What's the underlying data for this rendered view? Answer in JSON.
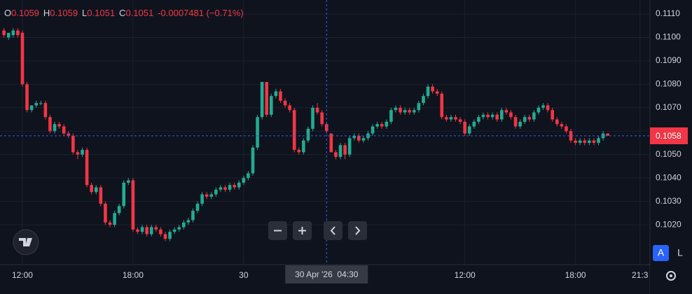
{
  "chart_data": {
    "type": "candlestick",
    "header": [
      {
        "label": "O",
        "value": "0.1059"
      },
      {
        "label": "H",
        "value": "0.1059"
      },
      {
        "label": "L",
        "value": "0.1051"
      },
      {
        "label": "C",
        "value": "0.1051"
      }
    ],
    "change": "-0.0007481 (−0.71%)",
    "up_color": "#22ab94",
    "down_color": "#f23645",
    "candles": [
      [
        0.1103,
        0.1104,
        0.11,
        0.1101
      ],
      [
        0.11,
        0.1102,
        0.1099,
        0.1102
      ],
      [
        0.1101,
        0.1104,
        0.11,
        0.1103
      ],
      [
        0.1103,
        0.1104,
        0.11,
        0.1101
      ],
      [
        0.1102,
        0.1103,
        0.1079,
        0.108
      ],
      [
        0.108,
        0.1081,
        0.1068,
        0.1069
      ],
      [
        0.1069,
        0.1071,
        0.1068,
        0.1071
      ],
      [
        0.1071,
        0.1073,
        0.107,
        0.1072
      ],
      [
        0.1072,
        0.1073,
        0.1071,
        0.1072
      ],
      [
        0.1072,
        0.1073,
        0.1065,
        0.1066
      ],
      [
        0.1066,
        0.1067,
        0.1059,
        0.106
      ],
      [
        0.106,
        0.1064,
        0.1059,
        0.1063
      ],
      [
        0.1063,
        0.1064,
        0.1061,
        0.1062
      ],
      [
        0.1062,
        0.1063,
        0.1058,
        0.1059
      ],
      [
        0.1059,
        0.106,
        0.1057,
        0.1058
      ],
      [
        0.1058,
        0.1059,
        0.105,
        0.1051
      ],
      [
        0.1051,
        0.1052,
        0.1048,
        0.105
      ],
      [
        0.105,
        0.1053,
        0.1049,
        0.1052
      ],
      [
        0.1052,
        0.1053,
        0.1036,
        0.1037
      ],
      [
        0.1037,
        0.1038,
        0.1033,
        0.1034
      ],
      [
        0.1034,
        0.1037,
        0.1033,
        0.1036
      ],
      [
        0.1036,
        0.1037,
        0.1028,
        0.1029
      ],
      [
        0.1029,
        0.103,
        0.102,
        0.1021
      ],
      [
        0.1021,
        0.1022,
        0.1019,
        0.102
      ],
      [
        0.102,
        0.1026,
        0.1019,
        0.1025
      ],
      [
        0.1025,
        0.1029,
        0.1024,
        0.1028
      ],
      [
        0.1028,
        0.1039,
        0.1027,
        0.1038
      ],
      [
        0.1038,
        0.104,
        0.1037,
        0.1039
      ],
      [
        0.1039,
        0.104,
        0.1017,
        0.1018
      ],
      [
        0.1018,
        0.1019,
        0.1016,
        0.1017
      ],
      [
        0.1017,
        0.102,
        0.1016,
        0.1019
      ],
      [
        0.1019,
        0.102,
        0.1015,
        0.1016
      ],
      [
        0.1016,
        0.102,
        0.1015,
        0.1019
      ],
      [
        0.1019,
        0.102,
        0.1017,
        0.1018
      ],
      [
        0.1018,
        0.1019,
        0.1015,
        0.1016
      ],
      [
        0.1016,
        0.1017,
        0.1013,
        0.1014
      ],
      [
        0.1014,
        0.1018,
        0.1013,
        0.1017
      ],
      [
        0.1017,
        0.1019,
        0.1016,
        0.1018
      ],
      [
        0.1018,
        0.102,
        0.1017,
        0.1019
      ],
      [
        0.1019,
        0.1022,
        0.1018,
        0.1021
      ],
      [
        0.1021,
        0.1023,
        0.102,
        0.1022
      ],
      [
        0.1022,
        0.1027,
        0.1021,
        0.1026
      ],
      [
        0.1026,
        0.103,
        0.1025,
        0.1029
      ],
      [
        0.1029,
        0.1034,
        0.1028,
        0.1033
      ],
      [
        0.1033,
        0.1034,
        0.1031,
        0.1032
      ],
      [
        0.1032,
        0.1034,
        0.1031,
        0.1033
      ],
      [
        0.1033,
        0.1036,
        0.1032,
        0.1035
      ],
      [
        0.1035,
        0.1037,
        0.1034,
        0.1036
      ],
      [
        0.1036,
        0.1037,
        0.1034,
        0.1035
      ],
      [
        0.1035,
        0.1038,
        0.1034,
        0.1037
      ],
      [
        0.1037,
        0.1038,
        0.1035,
        0.1036
      ],
      [
        0.1036,
        0.1039,
        0.1035,
        0.1038
      ],
      [
        0.1038,
        0.1041,
        0.1037,
        0.104
      ],
      [
        0.104,
        0.1043,
        0.1039,
        0.1042
      ],
      [
        0.1042,
        0.1054,
        0.1041,
        0.1053
      ],
      [
        0.1053,
        0.1067,
        0.1052,
        0.1066
      ],
      [
        0.1066,
        0.1081,
        0.1065,
        0.1081
      ],
      [
        0.1081,
        0.1081,
        0.1066,
        0.1067
      ],
      [
        0.1067,
        0.1076,
        0.1066,
        0.1075
      ],
      [
        0.1075,
        0.1078,
        0.1074,
        0.1077
      ],
      [
        0.1077,
        0.1078,
        0.1072,
        0.1073
      ],
      [
        0.1073,
        0.1074,
        0.107,
        0.1071
      ],
      [
        0.1071,
        0.1072,
        0.1068,
        0.1069
      ],
      [
        0.1069,
        0.107,
        0.1051,
        0.1052
      ],
      [
        0.1052,
        0.1053,
        0.105,
        0.1051
      ],
      [
        0.1051,
        0.1057,
        0.105,
        0.1056
      ],
      [
        0.1056,
        0.1062,
        0.1055,
        0.1061
      ],
      [
        0.1061,
        0.1071,
        0.106,
        0.107
      ],
      [
        0.107,
        0.1072,
        0.1067,
        0.1068
      ],
      [
        0.1068,
        0.1069,
        0.1062,
        0.1063
      ],
      [
        0.1063,
        0.1064,
        0.1059,
        0.106
      ],
      [
        0.1059,
        0.1059,
        0.1051,
        0.1051
      ],
      [
        0.1051,
        0.1052,
        0.1048,
        0.1049
      ],
      [
        0.1049,
        0.1055,
        0.1048,
        0.1054
      ],
      [
        0.1054,
        0.1055,
        0.1048,
        0.105
      ],
      [
        0.105,
        0.1058,
        0.1049,
        0.1057
      ],
      [
        0.1057,
        0.1059,
        0.1056,
        0.1058
      ],
      [
        0.1058,
        0.1059,
        0.1055,
        0.1056
      ],
      [
        0.1056,
        0.1058,
        0.1055,
        0.1057
      ],
      [
        0.1057,
        0.106,
        0.1056,
        0.1059
      ],
      [
        0.1059,
        0.1063,
        0.1058,
        0.1062
      ],
      [
        0.1062,
        0.1064,
        0.1061,
        0.1063
      ],
      [
        0.1063,
        0.1064,
        0.1061,
        0.1062
      ],
      [
        0.1062,
        0.1065,
        0.1061,
        0.1064
      ],
      [
        0.1064,
        0.107,
        0.1063,
        0.1069
      ],
      [
        0.1069,
        0.1071,
        0.1068,
        0.107
      ],
      [
        0.107,
        0.1071,
        0.1067,
        0.1068
      ],
      [
        0.1068,
        0.107,
        0.1067,
        0.1069
      ],
      [
        0.1069,
        0.107,
        0.1067,
        0.1068
      ],
      [
        0.1068,
        0.107,
        0.1067,
        0.1069
      ],
      [
        0.1069,
        0.1073,
        0.1068,
        0.1072
      ],
      [
        0.1072,
        0.1076,
        0.1071,
        0.1075
      ],
      [
        0.1075,
        0.108,
        0.1074,
        0.1079
      ],
      [
        0.1079,
        0.108,
        0.1076,
        0.1077
      ],
      [
        0.1077,
        0.1078,
        0.1075,
        0.1076
      ],
      [
        0.1076,
        0.1077,
        0.1065,
        0.1066
      ],
      [
        0.1066,
        0.1067,
        0.1064,
        0.1065
      ],
      [
        0.1065,
        0.1067,
        0.1064,
        0.1066
      ],
      [
        0.1066,
        0.1067,
        0.1064,
        0.1065
      ],
      [
        0.1065,
        0.1066,
        0.1063,
        0.1064
      ],
      [
        0.1064,
        0.1065,
        0.1058,
        0.1059
      ],
      [
        0.1059,
        0.1063,
        0.1058,
        0.1062
      ],
      [
        0.1062,
        0.1065,
        0.1061,
        0.1064
      ],
      [
        0.1064,
        0.1067,
        0.1063,
        0.1066
      ],
      [
        0.1066,
        0.1068,
        0.1065,
        0.1067
      ],
      [
        0.1067,
        0.1068,
        0.1065,
        0.1066
      ],
      [
        0.1066,
        0.1068,
        0.1065,
        0.1067
      ],
      [
        0.1067,
        0.1068,
        0.1064,
        0.1065
      ],
      [
        0.1065,
        0.107,
        0.1064,
        0.1069
      ],
      [
        0.1069,
        0.107,
        0.1067,
        0.1068
      ],
      [
        0.1068,
        0.1069,
        0.1065,
        0.1066
      ],
      [
        0.1066,
        0.1067,
        0.1061,
        0.1062
      ],
      [
        0.1062,
        0.1065,
        0.1061,
        0.1064
      ],
      [
        0.1064,
        0.1067,
        0.1063,
        0.1066
      ],
      [
        0.1066,
        0.1067,
        0.1064,
        0.1065
      ],
      [
        0.1065,
        0.1069,
        0.1064,
        0.1068
      ],
      [
        0.1068,
        0.1071,
        0.1067,
        0.107
      ],
      [
        0.107,
        0.1072,
        0.1069,
        0.1071
      ],
      [
        0.1071,
        0.1072,
        0.1068,
        0.1069
      ],
      [
        0.1069,
        0.107,
        0.1064,
        0.1065
      ],
      [
        0.1065,
        0.1066,
        0.1062,
        0.1063
      ],
      [
        0.1063,
        0.1064,
        0.1061,
        0.1062
      ],
      [
        0.1062,
        0.1063,
        0.1059,
        0.106
      ],
      [
        0.106,
        0.1061,
        0.1055,
        0.1056
      ],
      [
        0.1056,
        0.1057,
        0.1054,
        0.1055
      ],
      [
        0.1055,
        0.1057,
        0.1054,
        0.1056
      ],
      [
        0.1056,
        0.1057,
        0.1054,
        0.1055
      ],
      [
        0.1055,
        0.1057,
        0.1054,
        0.1056
      ],
      [
        0.1056,
        0.1057,
        0.1054,
        0.1055
      ],
      [
        0.1055,
        0.1058,
        0.1054,
        0.1057
      ],
      [
        0.1057,
        0.106,
        0.1056,
        0.1059
      ],
      [
        0.1059,
        0.1059,
        0.1058,
        0.1058
      ]
    ],
    "xlim": [
      -0.86,
      140.17
    ],
    "xticks": [
      {
        "value": 4,
        "label": "12:00"
      },
      {
        "value": 28,
        "label": "18:00"
      },
      {
        "value": 52,
        "label": "30"
      },
      {
        "value": 100,
        "label": "12:00"
      },
      {
        "value": 124,
        "label": "18:00"
      },
      {
        "value": 138,
        "label": "21:3"
      }
    ],
    "ylim": [
      0.1003,
      0.1116
    ],
    "yticks": [
      {
        "value": 0.102,
        "label": "0.1020"
      },
      {
        "value": 0.103,
        "label": "0.1030"
      },
      {
        "value": 0.104,
        "label": "0.1040"
      },
      {
        "value": 0.105,
        "label": "0.1050"
      },
      {
        "value": 0.106,
        "label": "0.1060"
      },
      {
        "value": 0.107,
        "label": "0.1070"
      },
      {
        "value": 0.108,
        "label": "0.1080"
      },
      {
        "value": 0.109,
        "label": "0.1090"
      },
      {
        "value": 0.11,
        "label": "0.1100"
      },
      {
        "value": 0.111,
        "label": "0.1110"
      }
    ],
    "last_price": {
      "value": 0.1058,
      "label": "0.1058"
    },
    "crosshair": {
      "x": 70,
      "label": "30 Apr '26  04:30"
    },
    "grid": true,
    "scale_buttons": [
      "A",
      "L"
    ]
  }
}
